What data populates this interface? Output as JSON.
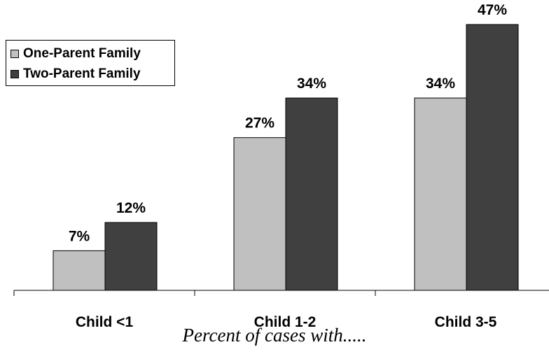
{
  "chart_data": {
    "type": "bar",
    "categories": [
      "Child <1",
      "Child 1-2",
      "Child 3-5"
    ],
    "series": [
      {
        "name": "One-Parent Family",
        "values": [
          7,
          27,
          34
        ],
        "color": "#c0c0c0"
      },
      {
        "name": "Two-Parent Family",
        "values": [
          12,
          34,
          47
        ],
        "color": "#404040"
      }
    ],
    "value_suffix": "%",
    "xlabel": "Percent of cases with.....",
    "ylabel": "",
    "ylim": [
      0,
      47
    ],
    "grid": false,
    "legend": "top-left"
  }
}
